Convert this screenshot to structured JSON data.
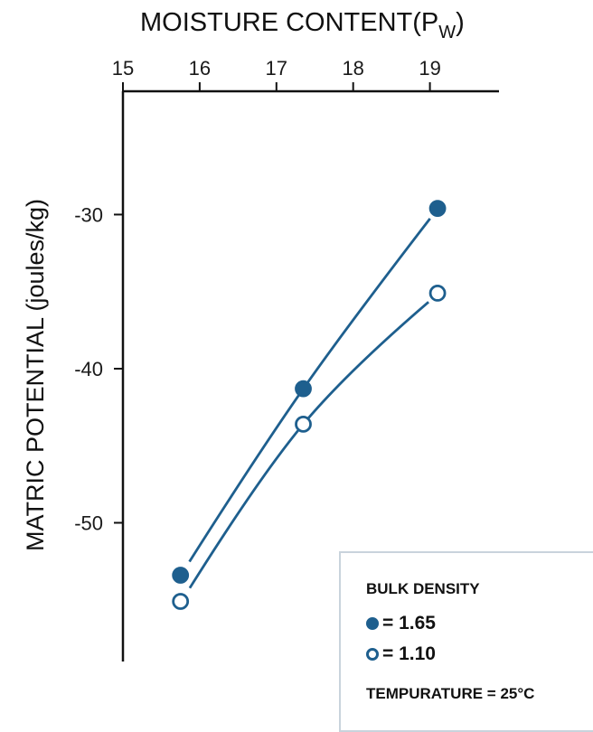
{
  "chart_data": {
    "type": "line",
    "title": "MOISTURE CONTENT(P",
    "title_subscript": "W",
    "title_close": ")",
    "xlabel": "MOISTURE CONTENT(PW)",
    "ylabel": "MATRIC POTENTIAL (joules/kg)",
    "x_axis_position": "top",
    "xlim": [
      15,
      19.9
    ],
    "ylim": [
      -59,
      -22
    ],
    "x_ticks": [
      15,
      16,
      17,
      18,
      19
    ],
    "y_ticks": [
      -30,
      -40,
      -50
    ],
    "grid": false,
    "color": "#1e5f8e",
    "series": [
      {
        "name": "= 1.65",
        "marker": "filled",
        "x": [
          15.75,
          17.35,
          19.1
        ],
        "y": [
          -53.4,
          -41.3,
          -29.6
        ]
      },
      {
        "name": "= 1.10",
        "marker": "open",
        "x": [
          15.75,
          17.35,
          19.1
        ],
        "y": [
          -55.1,
          -43.6,
          -35.1
        ]
      }
    ]
  },
  "legend": {
    "title": "BULK DENSITY",
    "entry_1": "= 1.65",
    "entry_2": "= 1.10",
    "note": "TEMPURATURE = 25°C"
  }
}
